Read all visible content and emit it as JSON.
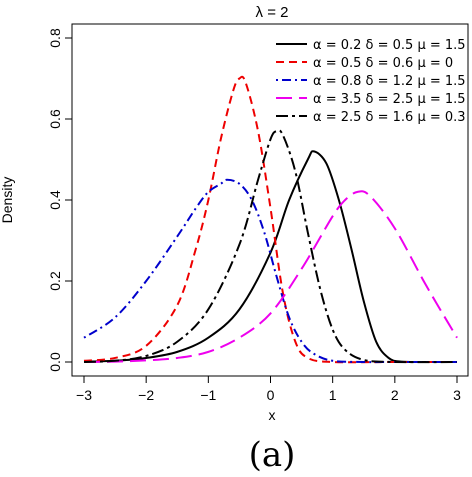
{
  "figure": {
    "caption": "(a)"
  },
  "chart_data": {
    "type": "line",
    "title": "λ = 2",
    "xlabel": "x",
    "ylabel": "Density",
    "xlim": [
      -3,
      3
    ],
    "ylim": [
      0,
      0.8
    ],
    "x_ticks": [
      "−3",
      "−2",
      "−1",
      "0",
      "1",
      "2",
      "3"
    ],
    "y_ticks": [
      "0.0",
      "0.2",
      "0.4",
      "0.6",
      "0.8"
    ],
    "grid": false,
    "legend_position": "top-right",
    "series": [
      {
        "name": "α = 0.2  δ = 0.5  μ = 1.5",
        "color": "#000000",
        "dash": "solid",
        "x": [
          -3,
          -2.5,
          -2,
          -1.5,
          -1,
          -0.5,
          0,
          0.3,
          0.6,
          0.7,
          0.9,
          1.1,
          1.3,
          1.5,
          1.7,
          1.9,
          2.1,
          2.5,
          3
        ],
        "y": [
          0.001,
          0.003,
          0.01,
          0.025,
          0.06,
          0.13,
          0.27,
          0.4,
          0.5,
          0.52,
          0.49,
          0.4,
          0.28,
          0.15,
          0.05,
          0.01,
          0.001,
          0.0,
          0.0
        ]
      },
      {
        "name": "α = 0.5  δ = 0.6  μ = 0",
        "color": "#ee0000",
        "dash": "dashed",
        "x": [
          -3,
          -2.5,
          -2,
          -1.5,
          -1.2,
          -1,
          -0.8,
          -0.6,
          -0.5,
          -0.4,
          -0.2,
          0,
          0.2,
          0.4,
          0.6,
          1,
          2,
          3
        ],
        "y": [
          0.003,
          0.01,
          0.04,
          0.14,
          0.28,
          0.4,
          0.55,
          0.67,
          0.7,
          0.69,
          0.57,
          0.38,
          0.17,
          0.05,
          0.01,
          0.0,
          0.0,
          0.0
        ]
      },
      {
        "name": "α = 0.8  δ = 1.2  μ = 1.5",
        "color": "#0000cc",
        "dash": "dashdot",
        "x": [
          -3,
          -2.5,
          -2,
          -1.5,
          -1.2,
          -1,
          -0.8,
          -0.7,
          -0.5,
          -0.3,
          -0.1,
          0.1,
          0.3,
          0.5,
          0.7,
          1,
          1.5,
          2,
          3
        ],
        "y": [
          0.06,
          0.11,
          0.2,
          0.31,
          0.38,
          0.42,
          0.44,
          0.45,
          0.44,
          0.4,
          0.32,
          0.21,
          0.11,
          0.05,
          0.02,
          0.003,
          0.0,
          0.0,
          0.0
        ]
      },
      {
        "name": "α = 3.5  δ = 2.5  μ = 1.5",
        "color": "#ee00ee",
        "dash": "longdash",
        "x": [
          -3,
          -2.5,
          -2,
          -1.5,
          -1,
          -0.5,
          0,
          0.5,
          1,
          1.2,
          1.4,
          1.6,
          2,
          2.5,
          3
        ],
        "y": [
          0.0,
          0.001,
          0.004,
          0.01,
          0.025,
          0.06,
          0.12,
          0.23,
          0.36,
          0.4,
          0.42,
          0.41,
          0.33,
          0.19,
          0.06
        ]
      },
      {
        "name": "α = 2.5  δ = 1.6  μ = 0.3",
        "color": "#000000",
        "dash": "dashdotlong",
        "x": [
          -3,
          -2.5,
          -2,
          -1.5,
          -1,
          -0.5,
          -0.2,
          0,
          0.1,
          0.2,
          0.4,
          0.6,
          0.8,
          1,
          1.2,
          1.5,
          2,
          3
        ],
        "y": [
          0.0,
          0.003,
          0.015,
          0.05,
          0.13,
          0.29,
          0.45,
          0.55,
          0.57,
          0.56,
          0.47,
          0.32,
          0.18,
          0.08,
          0.03,
          0.005,
          0.0,
          0.0
        ]
      }
    ]
  }
}
